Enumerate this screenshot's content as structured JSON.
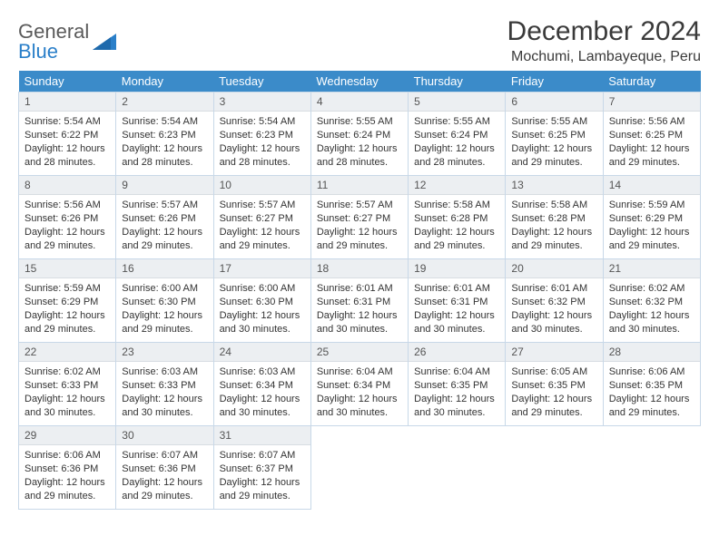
{
  "brand": {
    "word1": "General",
    "word2": "Blue"
  },
  "title": "December 2024",
  "location": "Mochumi, Lambayeque, Peru",
  "colors": {
    "header_bg": "#3b8bc9",
    "header_text": "#ffffff",
    "daynum_bg": "#eceff2",
    "cell_border": "#c8d8e8",
    "text": "#333333",
    "brand_gray": "#5a5a5a",
    "brand_blue": "#2a7fc9"
  },
  "weekdays": [
    "Sunday",
    "Monday",
    "Tuesday",
    "Wednesday",
    "Thursday",
    "Friday",
    "Saturday"
  ],
  "weeks": [
    [
      {
        "n": "1",
        "sr": "5:54 AM",
        "ss": "6:22 PM",
        "dl": "12 hours and 28 minutes."
      },
      {
        "n": "2",
        "sr": "5:54 AM",
        "ss": "6:23 PM",
        "dl": "12 hours and 28 minutes."
      },
      {
        "n": "3",
        "sr": "5:54 AM",
        "ss": "6:23 PM",
        "dl": "12 hours and 28 minutes."
      },
      {
        "n": "4",
        "sr": "5:55 AM",
        "ss": "6:24 PM",
        "dl": "12 hours and 28 minutes."
      },
      {
        "n": "5",
        "sr": "5:55 AM",
        "ss": "6:24 PM",
        "dl": "12 hours and 28 minutes."
      },
      {
        "n": "6",
        "sr": "5:55 AM",
        "ss": "6:25 PM",
        "dl": "12 hours and 29 minutes."
      },
      {
        "n": "7",
        "sr": "5:56 AM",
        "ss": "6:25 PM",
        "dl": "12 hours and 29 minutes."
      }
    ],
    [
      {
        "n": "8",
        "sr": "5:56 AM",
        "ss": "6:26 PM",
        "dl": "12 hours and 29 minutes."
      },
      {
        "n": "9",
        "sr": "5:57 AM",
        "ss": "6:26 PM",
        "dl": "12 hours and 29 minutes."
      },
      {
        "n": "10",
        "sr": "5:57 AM",
        "ss": "6:27 PM",
        "dl": "12 hours and 29 minutes."
      },
      {
        "n": "11",
        "sr": "5:57 AM",
        "ss": "6:27 PM",
        "dl": "12 hours and 29 minutes."
      },
      {
        "n": "12",
        "sr": "5:58 AM",
        "ss": "6:28 PM",
        "dl": "12 hours and 29 minutes."
      },
      {
        "n": "13",
        "sr": "5:58 AM",
        "ss": "6:28 PM",
        "dl": "12 hours and 29 minutes."
      },
      {
        "n": "14",
        "sr": "5:59 AM",
        "ss": "6:29 PM",
        "dl": "12 hours and 29 minutes."
      }
    ],
    [
      {
        "n": "15",
        "sr": "5:59 AM",
        "ss": "6:29 PM",
        "dl": "12 hours and 29 minutes."
      },
      {
        "n": "16",
        "sr": "6:00 AM",
        "ss": "6:30 PM",
        "dl": "12 hours and 29 minutes."
      },
      {
        "n": "17",
        "sr": "6:00 AM",
        "ss": "6:30 PM",
        "dl": "12 hours and 30 minutes."
      },
      {
        "n": "18",
        "sr": "6:01 AM",
        "ss": "6:31 PM",
        "dl": "12 hours and 30 minutes."
      },
      {
        "n": "19",
        "sr": "6:01 AM",
        "ss": "6:31 PM",
        "dl": "12 hours and 30 minutes."
      },
      {
        "n": "20",
        "sr": "6:01 AM",
        "ss": "6:32 PM",
        "dl": "12 hours and 30 minutes."
      },
      {
        "n": "21",
        "sr": "6:02 AM",
        "ss": "6:32 PM",
        "dl": "12 hours and 30 minutes."
      }
    ],
    [
      {
        "n": "22",
        "sr": "6:02 AM",
        "ss": "6:33 PM",
        "dl": "12 hours and 30 minutes."
      },
      {
        "n": "23",
        "sr": "6:03 AM",
        "ss": "6:33 PM",
        "dl": "12 hours and 30 minutes."
      },
      {
        "n": "24",
        "sr": "6:03 AM",
        "ss": "6:34 PM",
        "dl": "12 hours and 30 minutes."
      },
      {
        "n": "25",
        "sr": "6:04 AM",
        "ss": "6:34 PM",
        "dl": "12 hours and 30 minutes."
      },
      {
        "n": "26",
        "sr": "6:04 AM",
        "ss": "6:35 PM",
        "dl": "12 hours and 30 minutes."
      },
      {
        "n": "27",
        "sr": "6:05 AM",
        "ss": "6:35 PM",
        "dl": "12 hours and 29 minutes."
      },
      {
        "n": "28",
        "sr": "6:06 AM",
        "ss": "6:35 PM",
        "dl": "12 hours and 29 minutes."
      }
    ],
    [
      {
        "n": "29",
        "sr": "6:06 AM",
        "ss": "6:36 PM",
        "dl": "12 hours and 29 minutes."
      },
      {
        "n": "30",
        "sr": "6:07 AM",
        "ss": "6:36 PM",
        "dl": "12 hours and 29 minutes."
      },
      {
        "n": "31",
        "sr": "6:07 AM",
        "ss": "6:37 PM",
        "dl": "12 hours and 29 minutes."
      },
      null,
      null,
      null,
      null
    ]
  ],
  "labels": {
    "sunrise": "Sunrise: ",
    "sunset": "Sunset: ",
    "daylight": "Daylight: "
  }
}
